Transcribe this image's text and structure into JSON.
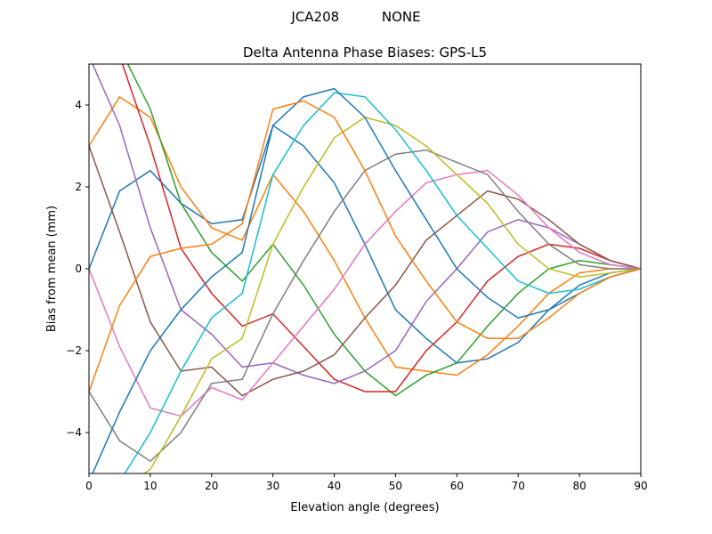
{
  "chart_data": {
    "type": "line",
    "suptitle": "JCA208          NONE",
    "title": "Delta Antenna Phase Biases: GPS-L5",
    "xlabel": "Elevation angle (degrees)",
    "ylabel": "Bias from mean (mm)",
    "xlim": [
      0,
      90
    ],
    "ylim": [
      -5,
      5
    ],
    "xticks": [
      0,
      10,
      20,
      30,
      40,
      50,
      60,
      70,
      80,
      90
    ],
    "yticks": [
      -4,
      -2,
      0,
      2,
      4
    ],
    "grid": false,
    "x": [
      0,
      5,
      10,
      15,
      20,
      25,
      30,
      35,
      40,
      45,
      50,
      55,
      60,
      65,
      70,
      75,
      80,
      85,
      90
    ],
    "colors": [
      "#1f77b4",
      "#ff7f0e",
      "#2ca02c",
      "#d62728",
      "#9467bd",
      "#8c564b",
      "#e377c2",
      "#7f7f7f",
      "#bcbd22",
      "#17becf"
    ],
    "series": [
      {
        "values": [
          0,
          1.9,
          2.4,
          1.6,
          1.1,
          1.2,
          3.5,
          3.0,
          2.1,
          0.6,
          -1.0,
          -1.7,
          -2.3,
          -2.2,
          -1.8,
          -1.0,
          -0.4,
          -0.1,
          0
        ]
      },
      {
        "values": [
          3.0,
          4.2,
          3.7,
          2.0,
          1.0,
          0.7,
          2.3,
          1.4,
          0.2,
          -1.2,
          -2.4,
          -2.5,
          -2.6,
          -2.1,
          -1.4,
          -0.6,
          -0.1,
          0.0,
          0
        ]
      },
      {
        "values": [
          5.2,
          5.4,
          3.9,
          1.6,
          0.4,
          -0.3,
          0.6,
          -0.4,
          -1.6,
          -2.5,
          -3.1,
          -2.6,
          -2.3,
          -1.4,
          -0.6,
          0,
          0.2,
          0.1,
          0
        ]
      },
      {
        "values": [
          6.0,
          5.2,
          3.0,
          0.5,
          -0.6,
          -1.4,
          -1.1,
          -1.9,
          -2.7,
          -3.0,
          -3.0,
          -2.0,
          -1.3,
          -0.3,
          0.3,
          0.6,
          0.5,
          0.2,
          0
        ]
      },
      {
        "values": [
          5.2,
          3.5,
          1.0,
          -1.0,
          -1.6,
          -2.4,
          -2.3,
          -2.6,
          -2.8,
          -2.5,
          -2.0,
          -0.8,
          0,
          0.9,
          1.2,
          1.0,
          0.6,
          0.2,
          0
        ]
      },
      {
        "values": [
          3.0,
          0.9,
          -1.3,
          -2.5,
          -2.4,
          -3.1,
          -2.7,
          -2.5,
          -2.1,
          -1.2,
          -0.4,
          0.7,
          1.3,
          1.9,
          1.7,
          1.2,
          0.6,
          0.2,
          0
        ]
      },
      {
        "values": [
          0,
          -1.9,
          -3.4,
          -3.6,
          -2.9,
          -3.2,
          -2.3,
          -1.4,
          -0.5,
          0.6,
          1.4,
          2.1,
          2.3,
          2.4,
          1.8,
          1.0,
          0.4,
          0.1,
          0
        ]
      },
      {
        "values": [
          -3.0,
          -4.2,
          -4.7,
          -4.0,
          -2.8,
          -2.7,
          -1.1,
          0.2,
          1.4,
          2.4,
          2.8,
          2.9,
          2.6,
          2.3,
          1.4,
          0.6,
          0.1,
          0.0,
          0
        ]
      },
      {
        "values": [
          -5.2,
          -5.4,
          -4.9,
          -3.6,
          -2.2,
          -1.7,
          0.6,
          2.0,
          3.2,
          3.7,
          3.5,
          3.0,
          2.3,
          1.6,
          0.6,
          0,
          -0.2,
          -0.1,
          0
        ]
      },
      {
        "values": [
          -6.0,
          -5.2,
          -4.0,
          -2.5,
          -1.2,
          -0.6,
          2.3,
          3.5,
          4.3,
          4.2,
          3.4,
          2.4,
          1.3,
          0.5,
          -0.3,
          -0.6,
          -0.5,
          -0.2,
          0
        ]
      },
      {
        "values": [
          -5.2,
          -3.5,
          -2.0,
          -1.0,
          -0.2,
          0.4,
          3.5,
          4.2,
          4.4,
          3.7,
          2.4,
          1.2,
          0,
          -0.7,
          -1.2,
          -1.0,
          -0.6,
          -0.2,
          0
        ]
      },
      {
        "values": [
          -3.0,
          -0.9,
          0.3,
          0.5,
          0.6,
          1.1,
          3.9,
          4.1,
          3.7,
          2.4,
          0.8,
          -0.3,
          -1.3,
          -1.7,
          -1.7,
          -1.2,
          -0.6,
          -0.2,
          0
        ]
      }
    ]
  }
}
